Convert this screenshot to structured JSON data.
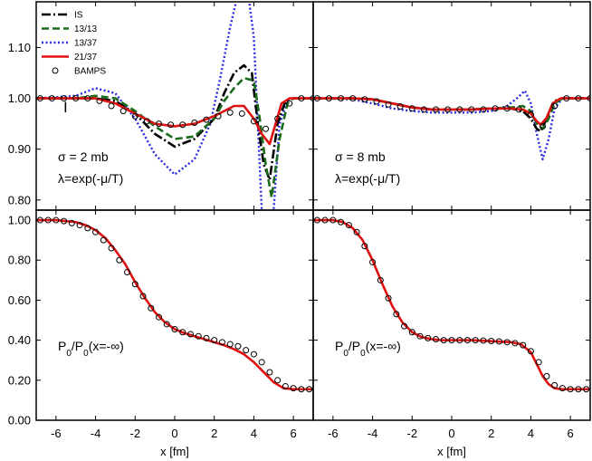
{
  "colors": {
    "IS": "#000000",
    "13/13": "#1a6b1a",
    "13/37": "#2a2ae0",
    "21/37": "#e01010",
    "BAMPS": "#000000"
  },
  "legend": {
    "placement": "top-left of top-left panel",
    "entries": [
      {
        "label": "IS",
        "style": "dash-dot",
        "color": "#000000"
      },
      {
        "label": "13/13",
        "style": "dashed",
        "color": "#1a6b1a"
      },
      {
        "label": "13/37",
        "style": "dotted",
        "color": "#2a2ae0"
      },
      {
        "label": "21/37",
        "style": "solid",
        "color": "#e01010"
      },
      {
        "label": "BAMPS",
        "style": "open-circle",
        "color": "#000000"
      }
    ]
  },
  "chart_data": [
    {
      "id": "top-left",
      "type": "line",
      "xlabel": "",
      "ylabel": "",
      "xlim": [
        -7,
        7
      ],
      "ylim": [
        0.78,
        1.19
      ],
      "yticks": [
        "0.80",
        "0.90",
        "1.00",
        "1.10"
      ],
      "xticks": [],
      "annotations": [
        "σ = 2 mb",
        "λ=exp(-μ/T)",
        "I"
      ],
      "series": [
        {
          "name": "IS",
          "x": [
            -7,
            -5,
            -4,
            -3,
            -2,
            -1,
            0,
            1,
            2,
            2.5,
            3,
            3.5,
            3.9,
            4.2,
            4.5,
            4.8,
            5.2,
            5.6,
            6,
            7
          ],
          "y": [
            1.0,
            1.0,
            1.0,
            0.995,
            0.97,
            0.93,
            0.905,
            0.92,
            0.96,
            1.01,
            1.05,
            1.065,
            1.05,
            0.95,
            0.87,
            0.84,
            0.95,
            0.995,
            1.0,
            1.0
          ]
        },
        {
          "name": "13/13",
          "x": [
            -7,
            -5,
            -4,
            -3,
            -2,
            -1,
            0,
            1,
            2,
            2.5,
            3,
            3.5,
            4,
            4.3,
            4.6,
            4.9,
            5.3,
            5.7,
            6,
            7
          ],
          "y": [
            1.0,
            1.0,
            1.005,
            1.0,
            0.975,
            0.945,
            0.92,
            0.925,
            0.96,
            0.995,
            1.02,
            1.04,
            1.035,
            0.96,
            0.87,
            0.805,
            0.92,
            0.99,
            1.0,
            1.0
          ]
        },
        {
          "name": "13/37",
          "x": [
            -7,
            -5,
            -4,
            -3,
            -2,
            -1,
            0,
            1,
            1.8,
            2.3,
            2.8,
            3.1,
            3.4,
            3.7,
            4.0,
            4.2,
            4.4,
            4.7,
            5.0,
            5.3,
            5.7,
            6,
            7
          ],
          "y": [
            1.0,
            1.005,
            1.02,
            1.01,
            0.96,
            0.89,
            0.85,
            0.88,
            0.95,
            1.04,
            1.14,
            1.19,
            1.22,
            1.21,
            1.12,
            0.95,
            0.78,
            0.6,
            0.78,
            0.95,
            0.995,
            1.0,
            1.0
          ]
        },
        {
          "name": "21/37",
          "x": [
            -7,
            -5,
            -4,
            -3,
            -2,
            -1,
            0,
            1,
            2,
            2.5,
            3,
            3.5,
            4,
            4.4,
            4.8,
            5.1,
            5.4,
            5.8,
            6.2,
            7
          ],
          "y": [
            1.0,
            1.0,
            1.0,
            0.99,
            0.97,
            0.95,
            0.945,
            0.95,
            0.965,
            0.975,
            0.985,
            0.985,
            0.96,
            0.93,
            0.91,
            0.95,
            0.99,
            1.0,
            1.0,
            1.0
          ]
        },
        {
          "name": "BAMPS",
          "x": [
            -6.8,
            -6.2,
            -5.6,
            -5.0,
            -4.4,
            -3.8,
            -3.2,
            -2.6,
            -2.0,
            -1.4,
            -0.8,
            -0.2,
            0.4,
            1.0,
            1.6,
            2.2,
            2.8,
            3.4,
            4.0,
            4.6,
            5.2,
            5.8,
            6.4,
            7.0
          ],
          "y": [
            1.0,
            1.0,
            1.0,
            1.0,
            1.0,
            0.995,
            0.985,
            0.975,
            0.965,
            0.955,
            0.95,
            0.948,
            0.948,
            0.952,
            0.958,
            0.965,
            0.972,
            0.97,
            0.955,
            0.94,
            0.96,
            0.99,
            1.0,
            1.0
          ]
        }
      ]
    },
    {
      "id": "top-right",
      "type": "line",
      "xlabel": "",
      "ylabel": "",
      "xlim": [
        -7,
        7
      ],
      "ylim": [
        0.78,
        1.19
      ],
      "yticks": [],
      "xticks": [],
      "annotations": [
        "σ = 8 mb",
        "λ=exp(-μ/T)"
      ],
      "series": [
        {
          "name": "IS",
          "x": [
            -7,
            -5,
            -4,
            -3,
            -2,
            -1,
            0,
            1,
            2,
            3,
            3.6,
            4.0,
            4.3,
            4.5,
            4.8,
            5.2,
            5.6,
            6,
            7
          ],
          "y": [
            1.0,
            1.0,
            0.998,
            0.99,
            0.982,
            0.978,
            0.978,
            0.978,
            0.98,
            0.98,
            0.975,
            0.96,
            0.94,
            0.935,
            0.96,
            0.995,
            1.0,
            1.0,
            1.0
          ]
        },
        {
          "name": "13/13",
          "x": [
            -7,
            -5,
            -4,
            -3,
            -2,
            -1,
            0,
            1,
            2,
            3,
            3.6,
            4.0,
            4.3,
            4.6,
            4.9,
            5.2,
            5.6,
            6,
            7
          ],
          "y": [
            1.0,
            1.0,
            0.998,
            0.99,
            0.982,
            0.978,
            0.978,
            0.978,
            0.98,
            0.982,
            0.985,
            0.975,
            0.95,
            0.94,
            0.96,
            0.99,
            1.0,
            1.0,
            1.0
          ]
        },
        {
          "name": "13/37",
          "x": [
            -7,
            -5,
            -4,
            -3,
            -2,
            -1,
            0,
            1,
            2,
            2.8,
            3.3,
            3.7,
            4.0,
            4.3,
            4.6,
            4.9,
            5.2,
            5.6,
            6,
            7
          ],
          "y": [
            1.0,
            0.998,
            0.99,
            0.98,
            0.975,
            0.972,
            0.972,
            0.972,
            0.975,
            0.985,
            1.0,
            1.015,
            0.99,
            0.93,
            0.88,
            0.92,
            0.98,
            1.0,
            1.0,
            1.0
          ]
        },
        {
          "name": "21/37",
          "x": [
            -7,
            -5,
            -4,
            -3,
            -2,
            -1,
            0,
            1,
            2,
            3,
            3.6,
            4.0,
            4.3,
            4.5,
            4.8,
            5.1,
            5.5,
            6,
            7
          ],
          "y": [
            1.0,
            1.0,
            0.998,
            0.99,
            0.982,
            0.978,
            0.978,
            0.978,
            0.98,
            0.98,
            0.978,
            0.97,
            0.955,
            0.948,
            0.962,
            0.99,
            1.0,
            1.0,
            1.0
          ]
        },
        {
          "name": "BAMPS",
          "x": [
            -6.8,
            -6.2,
            -5.6,
            -5.0,
            -4.4,
            -3.8,
            -3.2,
            -2.6,
            -2.0,
            -1.4,
            -0.8,
            -0.2,
            0.4,
            1.0,
            1.6,
            2.2,
            2.8,
            3.4,
            4.0,
            4.6,
            5.2,
            5.8,
            6.4,
            7.0
          ],
          "y": [
            1.0,
            1.0,
            1.0,
            1.0,
            0.998,
            0.994,
            0.988,
            0.984,
            0.98,
            0.978,
            0.978,
            0.978,
            0.978,
            0.978,
            0.978,
            0.98,
            0.98,
            0.978,
            0.968,
            0.945,
            0.985,
            1.0,
            1.0,
            1.0
          ]
        }
      ]
    },
    {
      "id": "bottom-left",
      "type": "line",
      "xlabel": "x [fm]",
      "ylabel": "",
      "xlim": [
        -7,
        7
      ],
      "ylim": [
        0.0,
        1.05
      ],
      "yticks": [
        "0.00",
        "0.20",
        "0.40",
        "0.60",
        "0.80",
        "1.00"
      ],
      "xticks": [
        "-6",
        "-4",
        "-2",
        "0",
        "2",
        "4",
        "6"
      ],
      "annotations": [
        "P0/P0(x=-∞)"
      ],
      "series": [
        {
          "name": "21/37",
          "x": [
            -7,
            -6,
            -5,
            -4.5,
            -4,
            -3.5,
            -3,
            -2.5,
            -2,
            -1.5,
            -1,
            -0.5,
            0,
            0.5,
            1,
            1.5,
            2,
            2.5,
            3,
            3.5,
            4,
            4.5,
            5,
            5.5,
            6,
            7
          ],
          "y": [
            1.0,
            1.0,
            0.99,
            0.975,
            0.95,
            0.91,
            0.85,
            0.78,
            0.69,
            0.61,
            0.54,
            0.49,
            0.455,
            0.435,
            0.42,
            0.405,
            0.39,
            0.375,
            0.355,
            0.33,
            0.29,
            0.24,
            0.19,
            0.16,
            0.155,
            0.155
          ]
        },
        {
          "name": "BAMPS",
          "x": [
            -6.8,
            -6.4,
            -6.0,
            -5.6,
            -5.2,
            -4.8,
            -4.4,
            -4.0,
            -3.6,
            -3.2,
            -2.8,
            -2.4,
            -2.0,
            -1.6,
            -1.2,
            -0.8,
            -0.4,
            0.0,
            0.4,
            0.8,
            1.2,
            1.6,
            2.0,
            2.4,
            2.8,
            3.2,
            3.6,
            4.0,
            4.4,
            4.8,
            5.2,
            5.6,
            6.0,
            6.4,
            6.8
          ],
          "y": [
            1.0,
            1.0,
            1.0,
            0.995,
            0.985,
            0.975,
            0.96,
            0.94,
            0.9,
            0.86,
            0.8,
            0.74,
            0.68,
            0.62,
            0.56,
            0.515,
            0.48,
            0.455,
            0.44,
            0.43,
            0.42,
            0.41,
            0.4,
            0.39,
            0.38,
            0.37,
            0.35,
            0.33,
            0.29,
            0.24,
            0.2,
            0.17,
            0.16,
            0.155,
            0.155
          ]
        }
      ]
    },
    {
      "id": "bottom-right",
      "type": "line",
      "xlabel": "x [fm]",
      "ylabel": "",
      "xlim": [
        -7,
        7
      ],
      "ylim": [
        0.0,
        1.05
      ],
      "yticks": [],
      "xticks": [
        "-6",
        "-4",
        "-2",
        "0",
        "2",
        "4",
        "6"
      ],
      "annotations": [
        "P0/P0(x=-∞)"
      ],
      "series": [
        {
          "name": "21/37",
          "x": [
            -7,
            -6,
            -5.5,
            -5,
            -4.5,
            -4,
            -3.5,
            -3,
            -2.5,
            -2,
            -1.5,
            -1,
            -0.5,
            0,
            1,
            2,
            3,
            3.5,
            4,
            4.3,
            4.6,
            4.9,
            5.2,
            5.6,
            6,
            7
          ],
          "y": [
            1.0,
            1.0,
            0.99,
            0.96,
            0.9,
            0.8,
            0.68,
            0.57,
            0.49,
            0.44,
            0.415,
            0.405,
            0.4,
            0.4,
            0.4,
            0.395,
            0.39,
            0.38,
            0.34,
            0.28,
            0.22,
            0.18,
            0.16,
            0.155,
            0.155,
            0.155
          ]
        },
        {
          "name": "BAMPS",
          "x": [
            -6.8,
            -6.4,
            -6.0,
            -5.6,
            -5.2,
            -4.8,
            -4.4,
            -4.0,
            -3.6,
            -3.2,
            -2.8,
            -2.4,
            -2.0,
            -1.6,
            -1.2,
            -0.8,
            -0.4,
            0.0,
            0.4,
            0.8,
            1.2,
            1.6,
            2.0,
            2.4,
            2.8,
            3.2,
            3.6,
            4.0,
            4.4,
            4.8,
            5.2,
            5.6,
            6.0,
            6.4,
            6.8
          ],
          "y": [
            1.0,
            1.0,
            1.0,
            0.99,
            0.975,
            0.94,
            0.87,
            0.79,
            0.7,
            0.61,
            0.53,
            0.47,
            0.44,
            0.42,
            0.41,
            0.405,
            0.4,
            0.4,
            0.4,
            0.4,
            0.4,
            0.398,
            0.396,
            0.394,
            0.39,
            0.385,
            0.375,
            0.345,
            0.29,
            0.22,
            0.175,
            0.16,
            0.155,
            0.155,
            0.155
          ]
        }
      ]
    }
  ]
}
